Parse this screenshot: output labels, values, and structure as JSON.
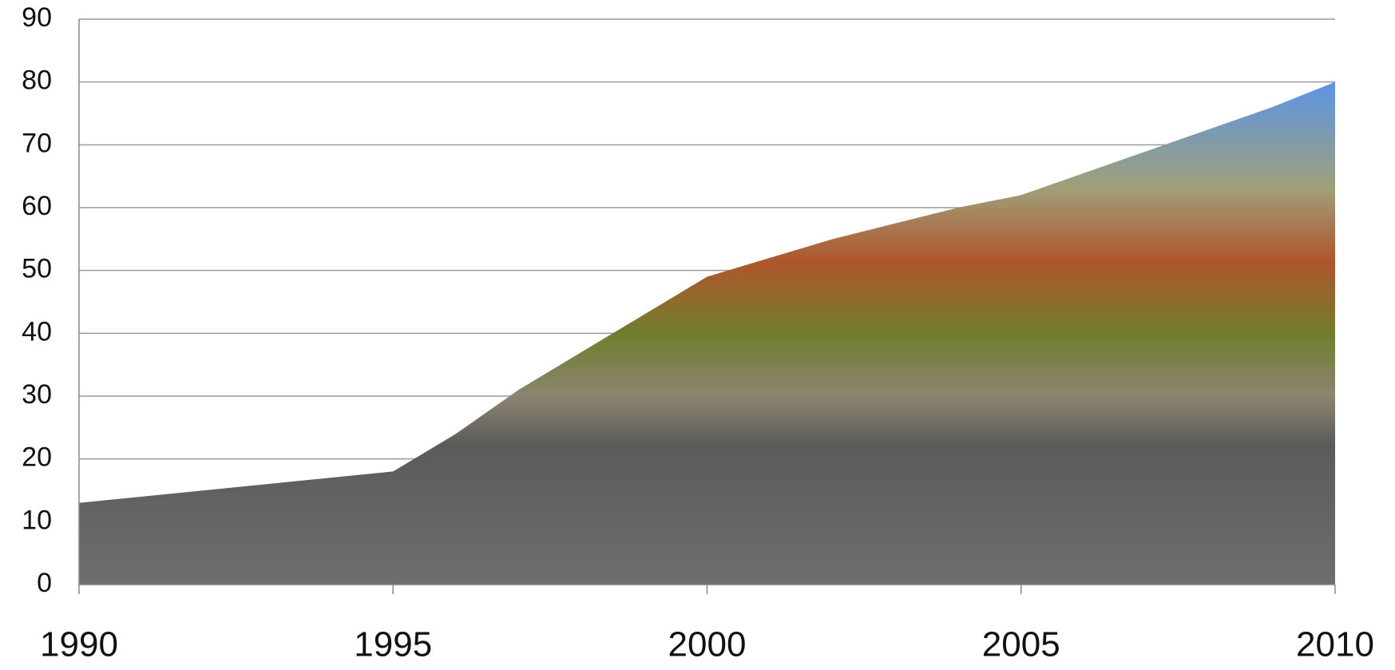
{
  "chart_data": {
    "type": "area",
    "x": [
      1990,
      1991,
      1992,
      1993,
      1994,
      1995,
      1996,
      1997,
      1998,
      1999,
      2000,
      2001,
      2002,
      2003,
      2004,
      2005,
      2006,
      2007,
      2008,
      2009,
      2010
    ],
    "values": [
      13,
      14,
      15,
      16,
      17,
      18,
      24,
      31,
      37,
      43,
      49,
      52,
      55,
      57.5,
      60,
      62,
      65.5,
      69,
      72.5,
      76,
      80
    ],
    "xlim": [
      1990,
      2010
    ],
    "xticks": [
      1990,
      1995,
      2000,
      2005,
      2010
    ],
    "ylim": [
      0,
      90
    ],
    "yticks": [
      0,
      10,
      20,
      30,
      40,
      50,
      60,
      70,
      80,
      90
    ],
    "grid": true
  }
}
